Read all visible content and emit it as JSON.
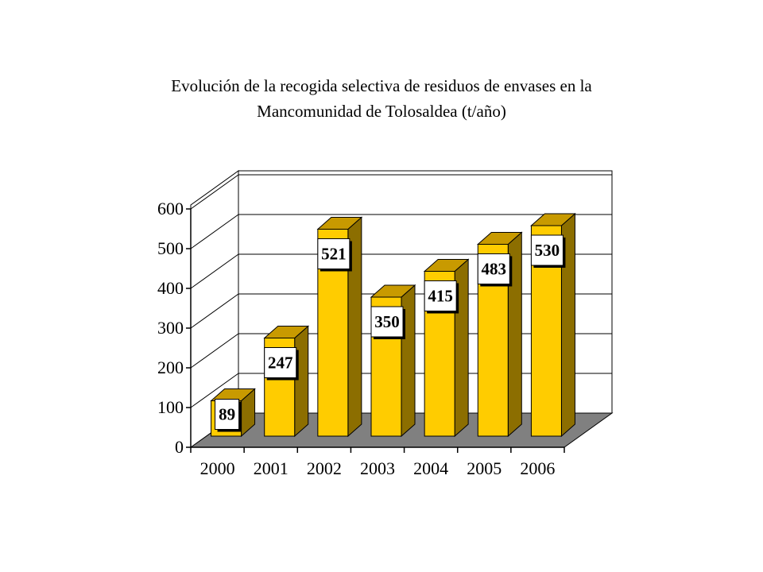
{
  "chart_data": {
    "type": "bar",
    "title": "Evolución de la recogida selectiva de residuos de envases en la",
    "subtitle": "Mancomunidad de Tolosaldea (t/año)",
    "categories": [
      "2000",
      "2001",
      "2002",
      "2003",
      "2004",
      "2005",
      "2006"
    ],
    "values": [
      89,
      247,
      521,
      350,
      415,
      483,
      530
    ],
    "data_labels": [
      "89",
      "247",
      "521",
      "350",
      "415",
      "483",
      "530"
    ],
    "y_ticks": [
      "0",
      "100",
      "200",
      "300",
      "400",
      "500",
      "600"
    ],
    "ylim": [
      0,
      600
    ],
    "grid": true,
    "style": "3d",
    "colors": {
      "bar_front": "#ffcc00",
      "bar_side": "#8c6e00",
      "bar_top": "#c89a00",
      "floor": "#808080"
    }
  }
}
